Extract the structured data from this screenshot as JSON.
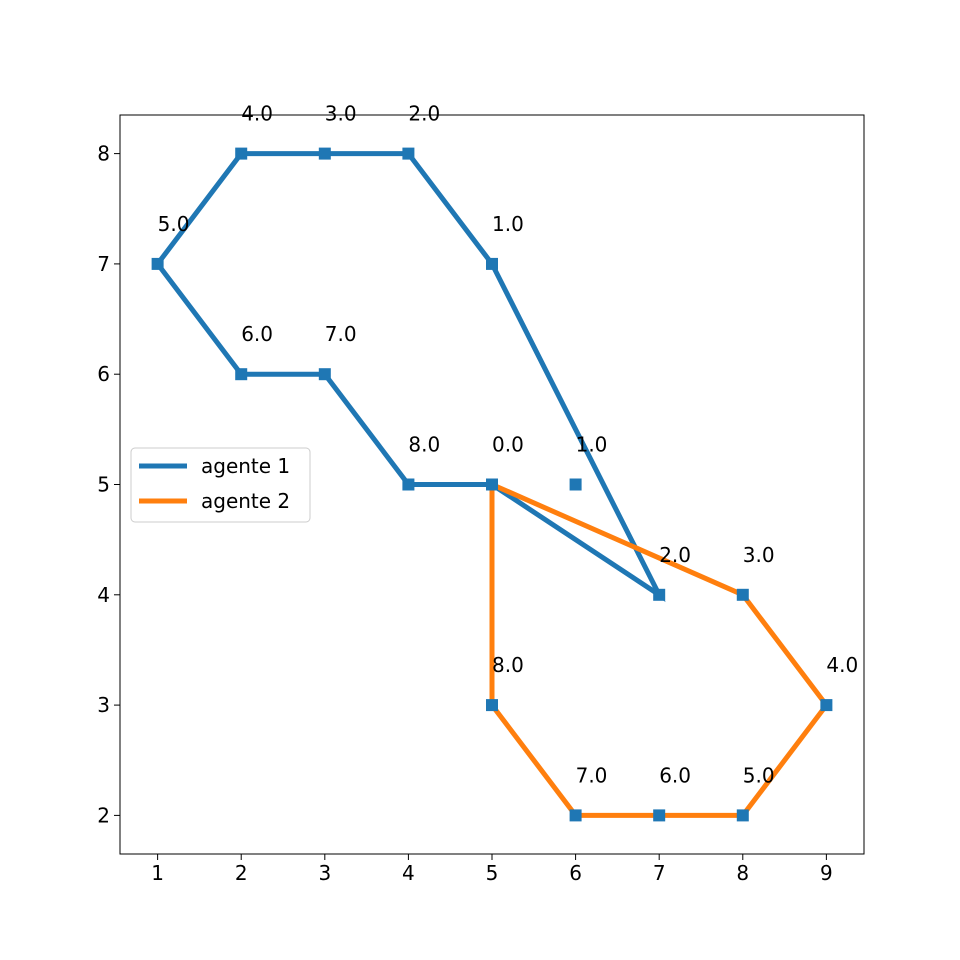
{
  "chart_data": {
    "type": "line",
    "title": "",
    "xlabel": "",
    "ylabel": "",
    "xlim": [
      0.55,
      9.45
    ],
    "ylim": [
      1.65,
      8.35
    ],
    "xticks": [
      "1",
      "2",
      "3",
      "4",
      "5",
      "6",
      "7",
      "8",
      "9"
    ],
    "yticks": [
      "2",
      "3",
      "4",
      "5",
      "6",
      "7",
      "8"
    ],
    "grid": false,
    "legend_position": "center-left",
    "series": [
      {
        "name": "agente 1",
        "color": "#1f77b4",
        "path": [
          {
            "x": 5,
            "y": 5
          },
          {
            "x": 7,
            "y": 4
          },
          {
            "x": 5,
            "y": 7
          },
          {
            "x": 4,
            "y": 8
          },
          {
            "x": 3,
            "y": 8
          },
          {
            "x": 2,
            "y": 8
          },
          {
            "x": 1,
            "y": 7
          },
          {
            "x": 2,
            "y": 6
          },
          {
            "x": 3,
            "y": 6
          },
          {
            "x": 4,
            "y": 5
          },
          {
            "x": 5,
            "y": 5
          }
        ]
      },
      {
        "name": "agente 2",
        "color": "#ff7f0e",
        "path": [
          {
            "x": 5,
            "y": 5
          },
          {
            "x": 8,
            "y": 4
          },
          {
            "x": 9,
            "y": 3
          },
          {
            "x": 8,
            "y": 2
          },
          {
            "x": 7,
            "y": 2
          },
          {
            "x": 6,
            "y": 2
          },
          {
            "x": 5,
            "y": 3
          },
          {
            "x": 5,
            "y": 5
          }
        ]
      }
    ],
    "markers": {
      "color": "#1f77b4",
      "points": [
        {
          "x": 5,
          "y": 5
        },
        {
          "x": 6,
          "y": 5
        },
        {
          "x": 7,
          "y": 4
        },
        {
          "x": 5,
          "y": 7
        },
        {
          "x": 4,
          "y": 8
        },
        {
          "x": 3,
          "y": 8
        },
        {
          "x": 2,
          "y": 8
        },
        {
          "x": 1,
          "y": 7
        },
        {
          "x": 2,
          "y": 6
        },
        {
          "x": 3,
          "y": 6
        },
        {
          "x": 4,
          "y": 5
        },
        {
          "x": 8,
          "y": 4
        },
        {
          "x": 9,
          "y": 3
        },
        {
          "x": 8,
          "y": 2
        },
        {
          "x": 7,
          "y": 2
        },
        {
          "x": 6,
          "y": 2
        },
        {
          "x": 5,
          "y": 3
        }
      ]
    },
    "annotations": [
      {
        "text": "4.0",
        "x": 2,
        "y": 8
      },
      {
        "text": "3.0",
        "x": 3,
        "y": 8
      },
      {
        "text": "2.0",
        "x": 4,
        "y": 8
      },
      {
        "text": "5.0",
        "x": 1,
        "y": 7
      },
      {
        "text": "1.0",
        "x": 5,
        "y": 7
      },
      {
        "text": "6.0",
        "x": 2,
        "y": 6
      },
      {
        "text": "7.0",
        "x": 3,
        "y": 6
      },
      {
        "text": "8.0",
        "x": 4,
        "y": 5
      },
      {
        "text": "0.0",
        "x": 5,
        "y": 5
      },
      {
        "text": "1.0",
        "x": 6,
        "y": 5
      },
      {
        "text": "2.0",
        "x": 7,
        "y": 4
      },
      {
        "text": "3.0",
        "x": 8,
        "y": 4
      },
      {
        "text": "8.0",
        "x": 5,
        "y": 3
      },
      {
        "text": "4.0",
        "x": 9,
        "y": 3
      },
      {
        "text": "7.0",
        "x": 6,
        "y": 2
      },
      {
        "text": "6.0",
        "x": 7,
        "y": 2
      },
      {
        "text": "5.0",
        "x": 8,
        "y": 2
      }
    ]
  }
}
